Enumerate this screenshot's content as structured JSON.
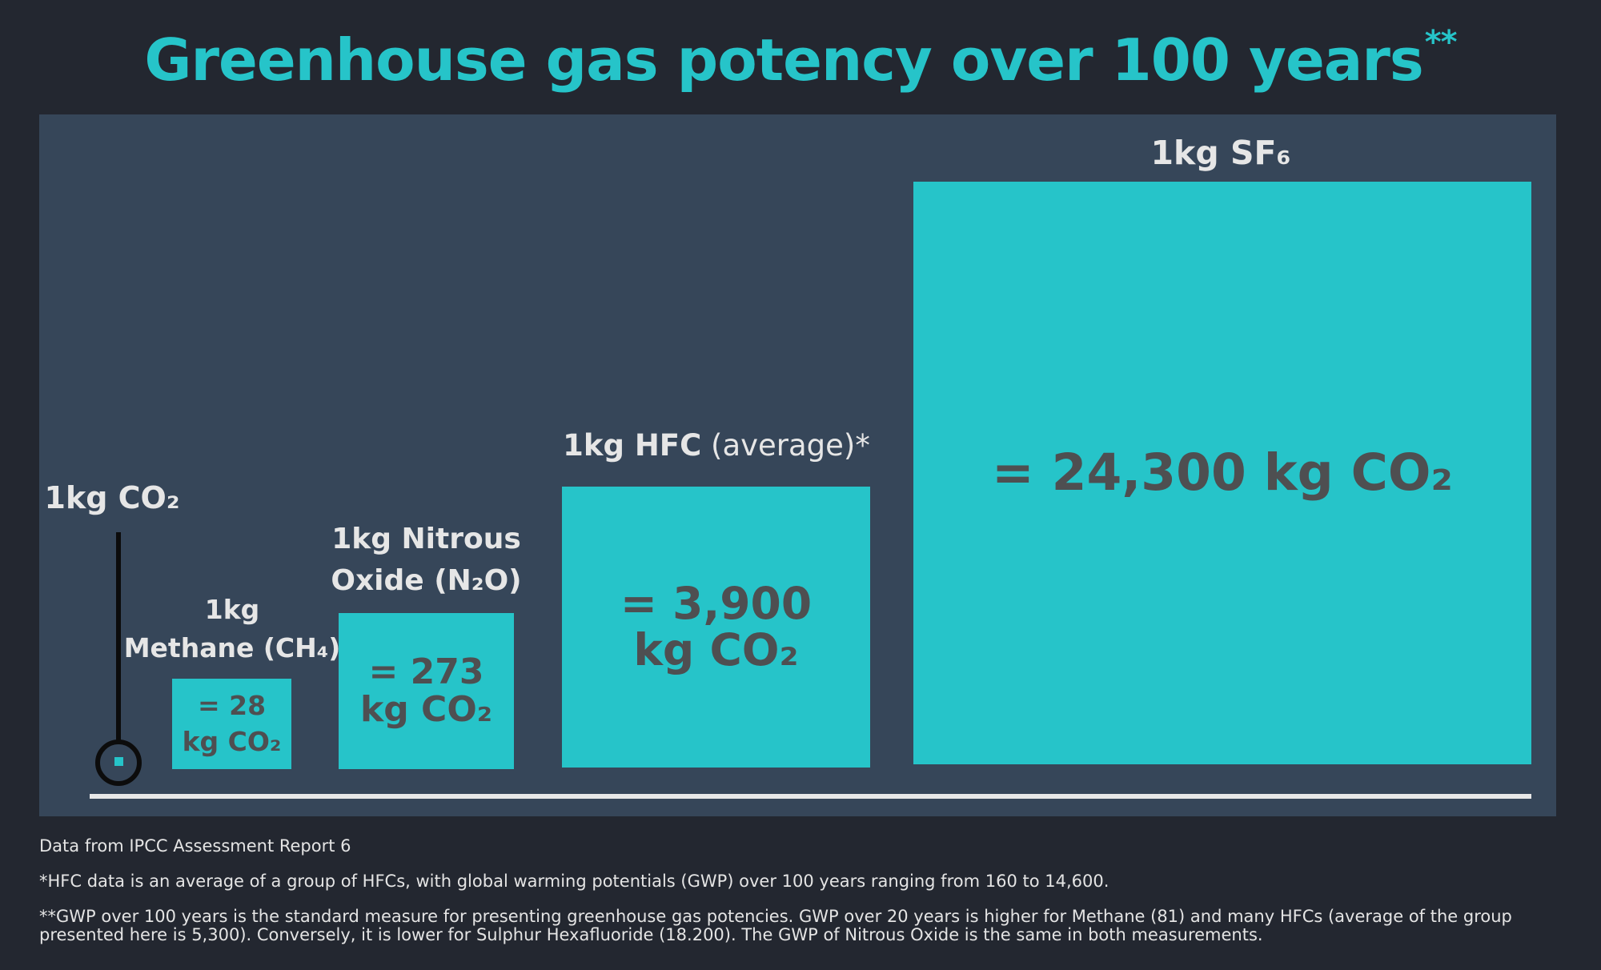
{
  "title": "Greenhouse gas potency over 100 years",
  "title_mark": "**",
  "colors": {
    "background": "#232730",
    "panel": "#364659",
    "accent": "#26c4c9",
    "box_text": "#4e4f51",
    "label_text": "#e6e6e6"
  },
  "chart_data": {
    "type": "bar",
    "unit": "kg CO₂",
    "reference": {
      "label": "1kg CO₂",
      "value": 1
    },
    "items": [
      {
        "label": "1kg Methane (CH₄)",
        "value": 28,
        "value_label": "= 28 kg CO₂"
      },
      {
        "label": "1kg Nitrous Oxide (N₂O)",
        "value": 273,
        "value_label": "= 273 kg CO₂"
      },
      {
        "label": "1kg HFC (average)*",
        "value": 3900,
        "value_label": "= 3,900 kg CO₂"
      },
      {
        "label": "1kg SF₆",
        "value": 24300,
        "value_label": "= 24,300 kg CO₂"
      }
    ]
  },
  "labels": {
    "co2": "1kg CO₂",
    "ch4_line1": "1kg",
    "ch4_line2": "Methane (CH₄)",
    "n2o_line1": "1kg Nitrous",
    "n2o_line2": "Oxide (N₂O)",
    "hfc_main": "1kg HFC",
    "hfc_light": " (average)*",
    "sf6": "1kg SF₆"
  },
  "box_labels": {
    "ch4": "= 28 kg CO₂",
    "n2o": "= 273 kg CO₂",
    "hfc": "= 3,900 kg CO₂",
    "sf6": "= 24,300 kg CO₂"
  },
  "notes": {
    "source": "Data from IPCC Assessment Report 6",
    "hfc": "*HFC data is an average of a group of HFCs, with global warming potentials (GWP) over 100 years ranging from 160 to 14,600.",
    "gwp": "**GWP over 100 years is the standard measure for presenting greenhouse gas potencies.  GWP over 20 years is higher for Methane (81) and many HFCs (average of the group presented here is 5,300). Conversely, it is lower for Sulphur Hexafluoride (18.200). The GWP of Nitrous Oxide is the same in both measurements."
  }
}
